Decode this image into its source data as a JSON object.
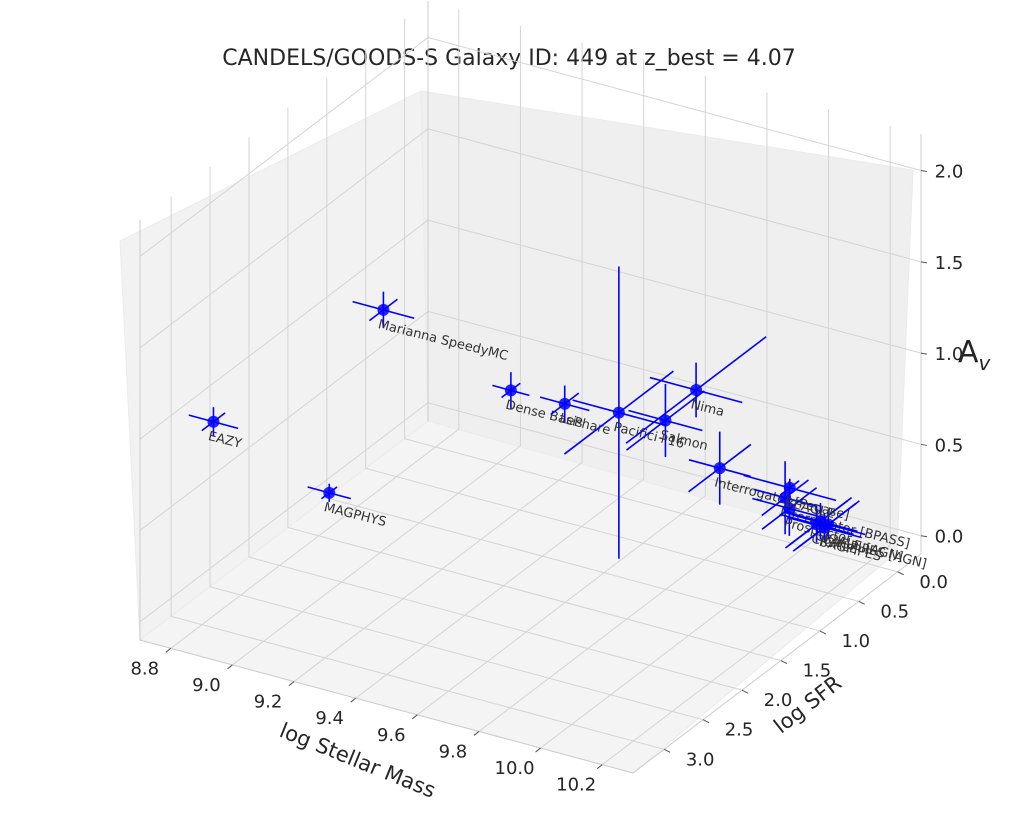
{
  "chart_data": {
    "type": "scatter",
    "title": "CANDELS/GOODS-S Galaxy ID: 449 at z_best = 4.07",
    "xlabel": "log Stellar Mass",
    "ylabel": "log SFR",
    "zlabel_main": "A",
    "zlabel_sub": "v",
    "xlim": [
      8.7,
      10.3
    ],
    "ylim": [
      -0.3,
      3.4
    ],
    "zlim": [
      -0.1,
      2.2
    ],
    "xticks": [
      "8.8",
      "9.0",
      "9.2",
      "9.4",
      "9.6",
      "9.8",
      "10.0",
      "10.2"
    ],
    "yticks": [
      "0.0",
      "0.5",
      "1.0",
      "1.5",
      "2.0",
      "2.5",
      "3.0"
    ],
    "zticks": [
      "0.0",
      "0.5",
      "1.0",
      "1.5",
      "2.0"
    ],
    "marker_color": "#0000ff",
    "points": [
      {
        "label": "EAZY",
        "x": 8.85,
        "y": 3.05,
        "z": 1.05,
        "xerr": 0.08,
        "yerr": 0.15,
        "zerr": 0.08
      },
      {
        "label": "MAGPHYS",
        "x": 9.15,
        "y": 2.75,
        "z": 0.7,
        "xerr": 0.07,
        "yerr": 0.1,
        "zerr": 0.05
      },
      {
        "label": "Marianna SpeedyMC",
        "x": 9.25,
        "y": 2.45,
        "z": 1.65,
        "xerr": 0.1,
        "yerr": 0.18,
        "zerr": 0.1
      },
      {
        "label": "Dense Basis",
        "x": 9.55,
        "y": 2.0,
        "z": 1.2,
        "xerr": 0.06,
        "yerr": 0.12,
        "zerr": 0.1
      },
      {
        "label": "LePhare",
        "x": 9.75,
        "y": 2.1,
        "z": 1.25,
        "xerr": 0.08,
        "yerr": 0.18,
        "zerr": 0.1
      },
      {
        "label": "Pacifici+16",
        "x": 9.85,
        "y": 1.8,
        "z": 1.15,
        "xerr": 0.15,
        "yerr": 0.7,
        "zerr": 0.8
      },
      {
        "label": "Nima",
        "x": 10.05,
        "y": 1.6,
        "z": 1.3,
        "xerr": 0.15,
        "yerr": 0.9,
        "zerr": 0.15
      },
      {
        "label": "Salmon",
        "x": 9.9,
        "y": 1.4,
        "z": 1.0,
        "xerr": 0.12,
        "yerr": 0.5,
        "zerr": 0.2
      },
      {
        "label": "Interrogator [Pegase]",
        "x": 9.95,
        "y": 0.9,
        "z": 0.6,
        "xerr": 0.1,
        "yerr": 0.4,
        "zerr": 0.2
      },
      {
        "label": "Interrogator [BPASS]",
        "x": 10.2,
        "y": 1.05,
        "z": 0.6,
        "xerr": 0.1,
        "yerr": 0.3,
        "zerr": 0.2
      },
      {
        "label": "Prospector",
        "x": 10.1,
        "y": 0.6,
        "z": 0.35,
        "xerr": 0.12,
        "yerr": 0.35,
        "zerr": 0.15
      },
      {
        "label": "CIGALE",
        "x": 10.1,
        "y": 0.25,
        "z": 0.15,
        "xerr": 0.12,
        "yerr": 0.4,
        "zerr": 0.1
      },
      {
        "label": "CIGALE [AGN]",
        "x": 10.1,
        "y": 0.2,
        "z": 0.15,
        "xerr": 0.12,
        "yerr": 0.4,
        "zerr": 0.1
      },
      {
        "label": "BAGPIPES",
        "x": 10.1,
        "y": 0.15,
        "z": 0.1,
        "xerr": 0.12,
        "yerr": 0.4,
        "zerr": 0.08
      },
      {
        "label": "BAGPIPES [AGN]",
        "x": 10.1,
        "y": 0.1,
        "z": 0.1,
        "xerr": 0.12,
        "yerr": 0.4,
        "zerr": 0.08
      },
      {
        "label": "BEAGLE",
        "x": 9.95,
        "y": 0.0,
        "z": 0.2,
        "xerr": 0.15,
        "yerr": 0.12,
        "zerr": 0.05
      }
    ]
  }
}
